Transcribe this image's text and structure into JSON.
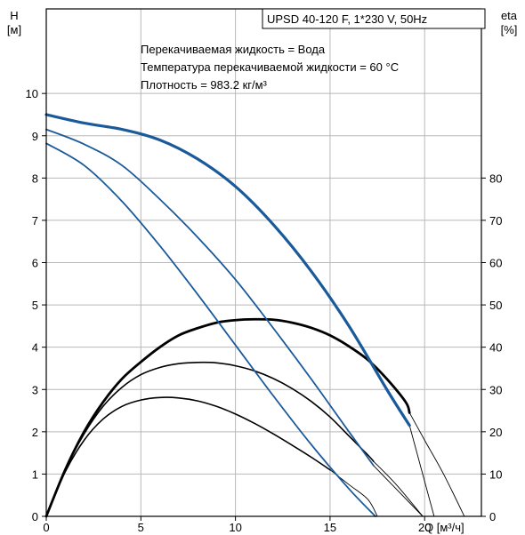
{
  "chart_data": {
    "type": "line",
    "title": "UPSD 40-120 F, 1*230 V, 50Hz",
    "annotations": [
      "Перекачиваемая жидкость = Вода",
      "Температура перекачиваемой жидкости = 60 °C",
      "Плотность = 983.2 кг/м³"
    ],
    "y_left": {
      "label_line1": "H",
      "label_line2": "[м]",
      "ylim": [
        0,
        10
      ],
      "ticks": [
        "0",
        "1",
        "2",
        "3",
        "4",
        "5",
        "6",
        "7",
        "8",
        "9",
        "10"
      ]
    },
    "y_right": {
      "label_line1": "eta",
      "label_line2": "[%]",
      "ylim": [
        0,
        100
      ],
      "ticks": [
        "0",
        "10",
        "20",
        "30",
        "40",
        "50",
        "60",
        "70",
        "80"
      ]
    },
    "x": {
      "label": "Q [м³/ч]",
      "xlim": [
        0,
        23
      ],
      "ticks": [
        "0",
        "5",
        "10",
        "15",
        "20"
      ]
    },
    "grid": true,
    "head_curves": [
      {
        "color": "#1a5a9a",
        "bold": true,
        "points": [
          [
            0,
            9.5
          ],
          [
            2,
            9.3
          ],
          [
            4,
            9.15
          ],
          [
            6,
            8.9
          ],
          [
            8,
            8.45
          ],
          [
            10,
            7.8
          ],
          [
            12,
            6.9
          ],
          [
            14,
            5.8
          ],
          [
            16,
            4.5
          ],
          [
            18,
            3.0
          ],
          [
            19.2,
            2.15
          ]
        ]
      },
      {
        "color": "#1a5a9a",
        "bold": false,
        "points": [
          [
            0,
            9.15
          ],
          [
            2,
            8.8
          ],
          [
            4,
            8.3
          ],
          [
            6,
            7.5
          ],
          [
            8,
            6.6
          ],
          [
            10,
            5.6
          ],
          [
            12,
            4.45
          ],
          [
            14,
            3.25
          ],
          [
            16,
            2.0
          ],
          [
            17.3,
            1.2
          ]
        ]
      },
      {
        "color": "#1a5a9a",
        "bold": false,
        "points": [
          [
            0,
            8.82
          ],
          [
            2,
            8.3
          ],
          [
            4,
            7.45
          ],
          [
            6,
            6.4
          ],
          [
            8,
            5.25
          ],
          [
            10,
            4.05
          ],
          [
            12,
            2.85
          ],
          [
            14,
            1.7
          ],
          [
            16,
            0.65
          ],
          [
            17.4,
            0.0
          ]
        ]
      }
    ],
    "head_extensions": [
      {
        "color": "#000000",
        "points": [
          [
            19.2,
            2.15
          ],
          [
            20.5,
            0.0
          ]
        ]
      },
      {
        "color": "#000000",
        "points": [
          [
            17.3,
            1.2
          ],
          [
            19.9,
            0.0
          ]
        ]
      }
    ],
    "efficiency_curves": [
      {
        "color": "#000000",
        "bold": true,
        "points": [
          [
            0,
            0
          ],
          [
            1,
            11
          ],
          [
            2,
            20
          ],
          [
            3,
            27
          ],
          [
            4,
            32.5
          ],
          [
            5,
            36.5
          ],
          [
            6,
            40
          ],
          [
            7,
            42.8
          ],
          [
            8,
            44.5
          ],
          [
            9,
            45.8
          ],
          [
            10,
            46.4
          ],
          [
            11,
            46.6
          ],
          [
            12,
            46.5
          ],
          [
            13,
            45.8
          ],
          [
            14,
            44.6
          ],
          [
            15,
            42.8
          ],
          [
            16,
            40.2
          ],
          [
            17,
            37.0
          ],
          [
            18,
            32.5
          ],
          [
            19,
            27
          ],
          [
            19.2,
            24.5
          ]
        ]
      },
      {
        "color": "#000000",
        "bold": false,
        "points": [
          [
            0,
            0
          ],
          [
            1,
            11
          ],
          [
            2,
            19.5
          ],
          [
            3,
            26
          ],
          [
            4,
            30.5
          ],
          [
            5,
            33.5
          ],
          [
            6,
            35.2
          ],
          [
            7,
            36.1
          ],
          [
            8,
            36.4
          ],
          [
            9,
            36.3
          ],
          [
            10,
            35.6
          ],
          [
            11,
            34.4
          ],
          [
            12,
            32.6
          ],
          [
            13,
            30.2
          ],
          [
            14,
            27.2
          ],
          [
            15,
            23.5
          ],
          [
            16,
            19
          ],
          [
            17,
            14.5
          ],
          [
            17.3,
            13
          ]
        ]
      },
      {
        "color": "#000000",
        "bold": false,
        "points": [
          [
            0,
            0
          ],
          [
            1,
            10.5
          ],
          [
            2,
            18
          ],
          [
            3,
            23
          ],
          [
            4,
            26
          ],
          [
            5,
            27.5
          ],
          [
            6,
            28.1
          ],
          [
            7,
            28
          ],
          [
            8,
            27.3
          ],
          [
            9,
            26
          ],
          [
            10,
            24.2
          ],
          [
            11,
            22
          ],
          [
            12,
            19.5
          ],
          [
            13,
            16.8
          ],
          [
            14,
            14
          ],
          [
            15,
            11
          ]
        ]
      }
    ],
    "efficiency_extensions": [
      {
        "color": "#000000",
        "points": [
          [
            15,
            11
          ],
          [
            16,
            7.5
          ],
          [
            17,
            4
          ],
          [
            17.5,
            0.0
          ]
        ]
      },
      {
        "color": "#000000",
        "points": [
          [
            17.3,
            13
          ],
          [
            18.5,
            7.5
          ],
          [
            19.9,
            0.0
          ]
        ]
      },
      {
        "color": "#000000",
        "points": [
          [
            19.2,
            24.5
          ],
          [
            20,
            18
          ],
          [
            21,
            10
          ],
          [
            22.1,
            0.0
          ]
        ]
      }
    ]
  }
}
